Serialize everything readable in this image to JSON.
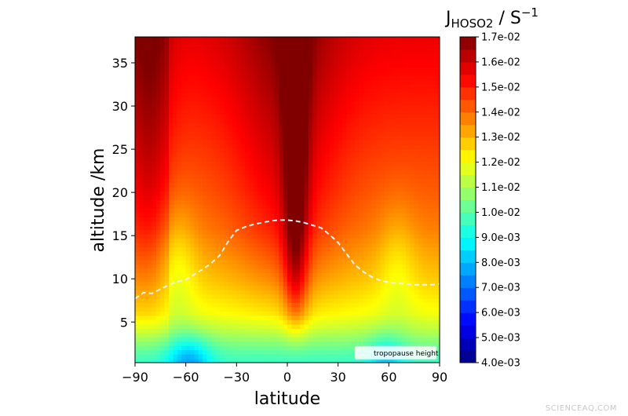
{
  "chart_data": {
    "type": "heatmap",
    "title_main": "J",
    "title_sub": "HOSO2",
    "title_unit": " / S",
    "title_exp": "−1",
    "xlabel": "latitude",
    "ylabel": "altitude /km",
    "xlim": [
      -90,
      90
    ],
    "ylim": [
      0.3,
      38
    ],
    "xticks": [
      -90,
      -60,
      -30,
      0,
      30,
      60,
      90
    ],
    "xtick_labels": [
      "−90",
      "−60",
      "−30",
      "0",
      "30",
      "60",
      "90"
    ],
    "yticks": [
      5,
      10,
      15,
      20,
      25,
      30,
      35
    ],
    "ytick_labels": [
      "5",
      "10",
      "15",
      "20",
      "25",
      "30",
      "35"
    ],
    "colorbar": {
      "min": 0.004,
      "max": 0.017,
      "ticks": [
        0.004,
        0.005,
        0.006,
        0.007,
        0.008,
        0.009,
        0.01,
        0.011,
        0.012,
        0.013,
        0.014,
        0.015,
        0.016,
        0.017
      ],
      "tick_labels": [
        "4.0e-03",
        "5.0e-03",
        "6.0e-03",
        "7.0e-03",
        "8.0e-03",
        "9.0e-03",
        "1.0e-02",
        "1.1e-02",
        "1.2e-02",
        "1.3e-02",
        "1.4e-02",
        "1.5e-02",
        "1.6e-02",
        "1.7e-02"
      ],
      "colormap": "jet"
    },
    "field_profile": {
      "altitudes": [
        0.3,
        2,
        4,
        6,
        8,
        10,
        13,
        16,
        20,
        25,
        30,
        34,
        38
      ],
      "values_midlat": [
        0.0096,
        0.0102,
        0.0112,
        0.012,
        0.0124,
        0.0128,
        0.0133,
        0.0138,
        0.0142,
        0.0146,
        0.015,
        0.0153,
        0.0156
      ]
    },
    "series": [
      {
        "name": "tropopause height",
        "style": "dashed",
        "color": "#f2f2f2",
        "x": [
          -90,
          -85,
          -80,
          -75,
          -70,
          -65,
          -60,
          -55,
          -50,
          -45,
          -40,
          -35,
          -30,
          -25,
          -20,
          -15,
          -10,
          -5,
          0,
          5,
          10,
          15,
          20,
          25,
          30,
          35,
          40,
          45,
          50,
          55,
          60,
          65,
          70,
          75,
          80,
          85,
          90
        ],
        "y": [
          7.7,
          8.4,
          8.3,
          8.8,
          9.3,
          9.7,
          9.9,
          10.5,
          11.1,
          11.8,
          12.7,
          14.3,
          15.6,
          16.0,
          16.3,
          16.5,
          16.7,
          16.8,
          16.8,
          16.7,
          16.5,
          16.2,
          15.9,
          15.1,
          14.2,
          12.9,
          11.6,
          10.8,
          10.2,
          9.8,
          9.6,
          9.5,
          9.4,
          9.3,
          9.3,
          9.3,
          9.4
        ]
      }
    ],
    "legend_position": "bottom-right"
  },
  "watermark": "SCIENCEAQ.COM"
}
